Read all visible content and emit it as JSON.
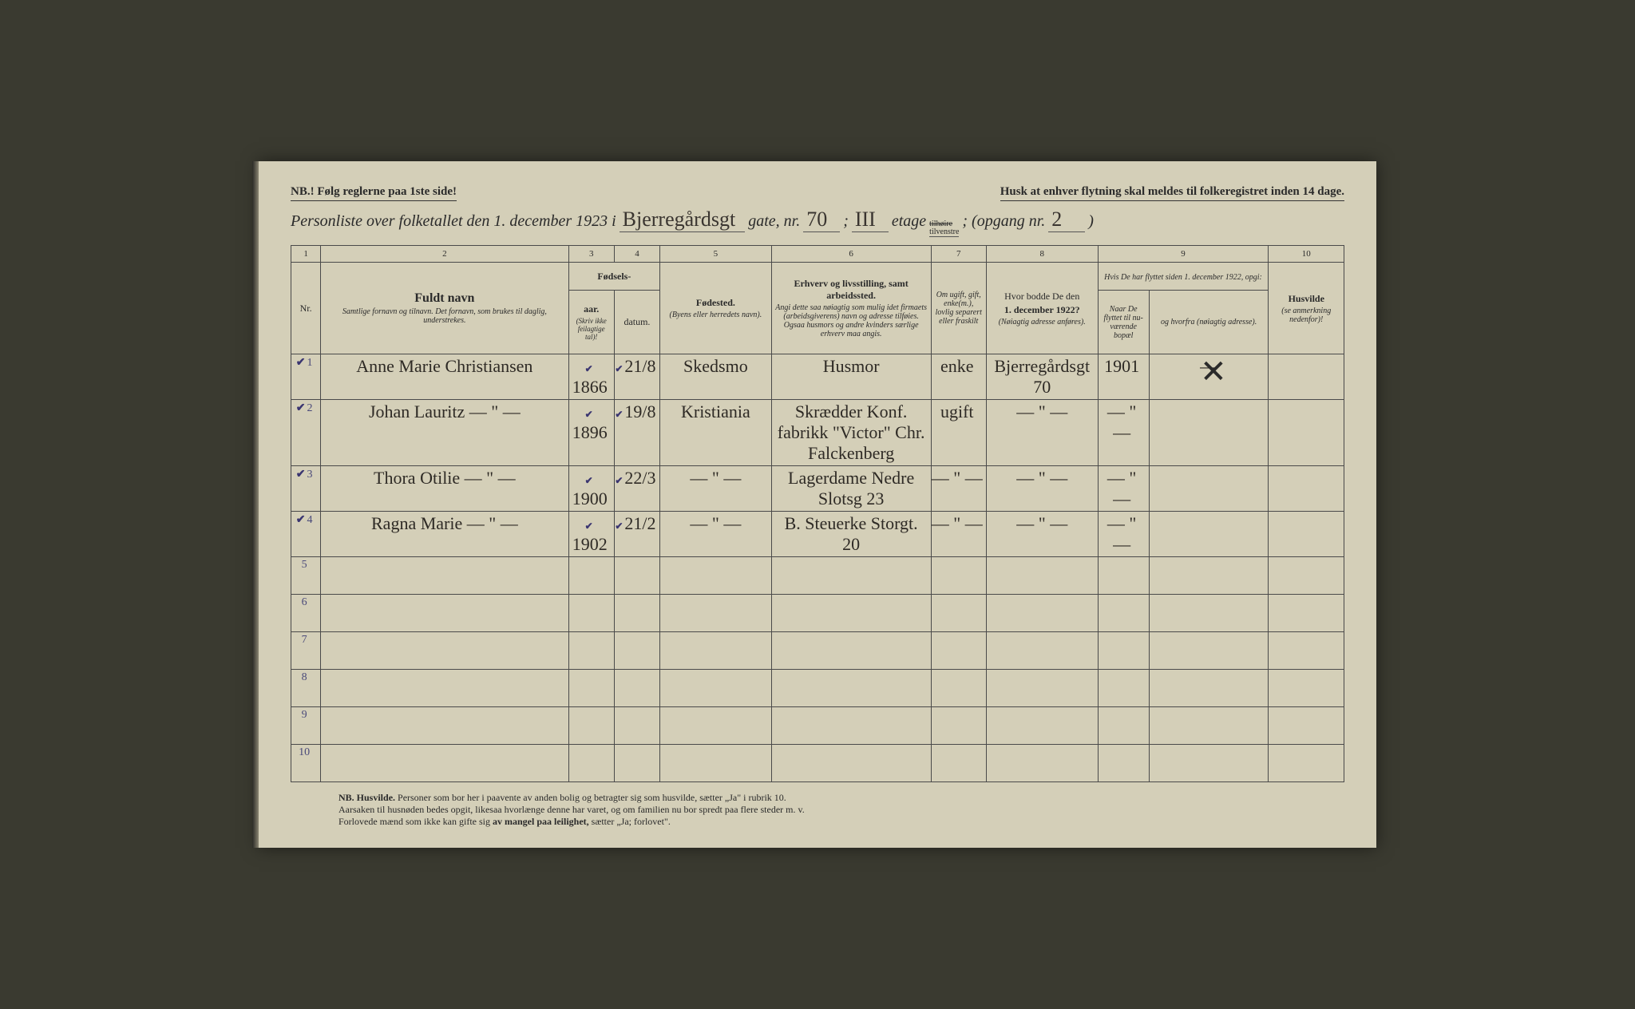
{
  "top_notice_left": "NB.! Følg reglerne paa 1ste side!",
  "top_notice_right": "Husk at enhver flytning skal meldes til folkeregistret inden 14 dage.",
  "title": {
    "prefix": "Personliste over folketallet den 1. december 1923 i",
    "street": "Bjerregårdsgt",
    "gate_label": "gate, nr.",
    "gate_nr": "70",
    "sep1": ";",
    "etage_hand": "III",
    "etage_label": "etage",
    "side_top": "tilhøire",
    "side_bot": "tilvenstre",
    "opgang_label": "; (opgang nr.",
    "opgang": "2",
    "close": ")"
  },
  "col_numbers": [
    "1",
    "2",
    "3",
    "4",
    "5",
    "6",
    "7",
    "8",
    "9",
    "10"
  ],
  "headers": {
    "nr": "Nr.",
    "name_title": "Fuldt navn",
    "name_sub": "Samtlige fornavn og tilnavn.  Det fornavn, som brukes til daglig, understrekes.",
    "birth_title": "Fødsels-",
    "birth_year": "aar.",
    "birth_date": "datum.",
    "birth_note": "(Skriv ikke feilagtige tal)!",
    "birthplace_title": "Fødested.",
    "birthplace_sub": "(Byens eller herredets navn).",
    "occupation_title": "Erhverv og livsstilling, samt arbeidssted.",
    "occupation_sub": "Angi dette saa nøiagtig som mulig idet firmaets (arbeidsgiverens) navn og adresse tilføies. Ogsaa husmors og andre kvinders særlige erhverv maa angis.",
    "marital_title": "Om ugift, gift, enke(m.), lovlig separert eller fraskilt",
    "addr1922_title": "Hvor bodde De den",
    "addr1922_date": "1. december 1922?",
    "addr1922_sub": "(Nøiagtig adresse anføres).",
    "moved_title": "Hvis De har flyttet siden 1. december 1922, opgi:",
    "moved_year": "Naar De flyttet til nu-værende bopæl",
    "moved_from": "og hvorfra (nøiagtig adresse).",
    "husvilde_title": "Husvilde",
    "husvilde_sub": "(se anmerkning nedenfor)!"
  },
  "rows": [
    {
      "nr": "1",
      "name": "Anne Marie Christiansen",
      "year": "1866",
      "date": "21/8",
      "birthplace": "Skedsmo",
      "occupation": "Husmor",
      "marital": "enke",
      "addr1922": "Bjerregårdsgt 70",
      "moved_year": "1901",
      "moved_from": "—",
      "husvilde": ""
    },
    {
      "nr": "2",
      "name": "Johan Lauritz   — \" —",
      "year": "1896",
      "date": "19/8",
      "birthplace": "Kristiania",
      "occupation": "Skrædder Konf. fabrikk \"Victor\" Chr. Falckenberg",
      "marital": "ugift",
      "addr1922": "— \" —",
      "moved_year": "— \" —",
      "moved_from": "",
      "husvilde": ""
    },
    {
      "nr": "3",
      "name": "Thora Otilie   — \" —",
      "year": "1900",
      "date": "22/3",
      "birthplace": "— \" —",
      "occupation": "Lagerdame Nedre Slotsg 23",
      "marital": "— \" —",
      "addr1922": "— \" —",
      "moved_year": "— \" —",
      "moved_from": "",
      "husvilde": ""
    },
    {
      "nr": "4",
      "name": "Ragna Marie   — \" —",
      "year": "1902",
      "date": "21/2",
      "birthplace": "— \" —",
      "occupation": "B. Steuerke Storgt. 20",
      "marital": "— \" —",
      "addr1922": "— \" —",
      "moved_year": "— \" —",
      "moved_from": "",
      "husvilde": ""
    }
  ],
  "footer": {
    "line1_nb": "NB.  Husvilde.",
    "line1": "Personer som bor her i paavente av anden bolig og betragter sig som husvilde, sætter „Ja\" i rubrik 10.",
    "line2": "Aarsaken til husnøden bedes opgit, likesaa hvorlænge denne har varet, og om familien nu bor spredt paa flere steder m. v.",
    "line3a": "Forlovede mænd som ikke kan gifte sig ",
    "line3b": "av mangel paa leilighet,",
    "line3c": " sætter „Ja; forlovet\"."
  },
  "colors": {
    "paper": "#d4cfb8",
    "ink": "#2a2a2a",
    "handwriting": "#3a3530",
    "blue_tick": "#3a3570"
  }
}
